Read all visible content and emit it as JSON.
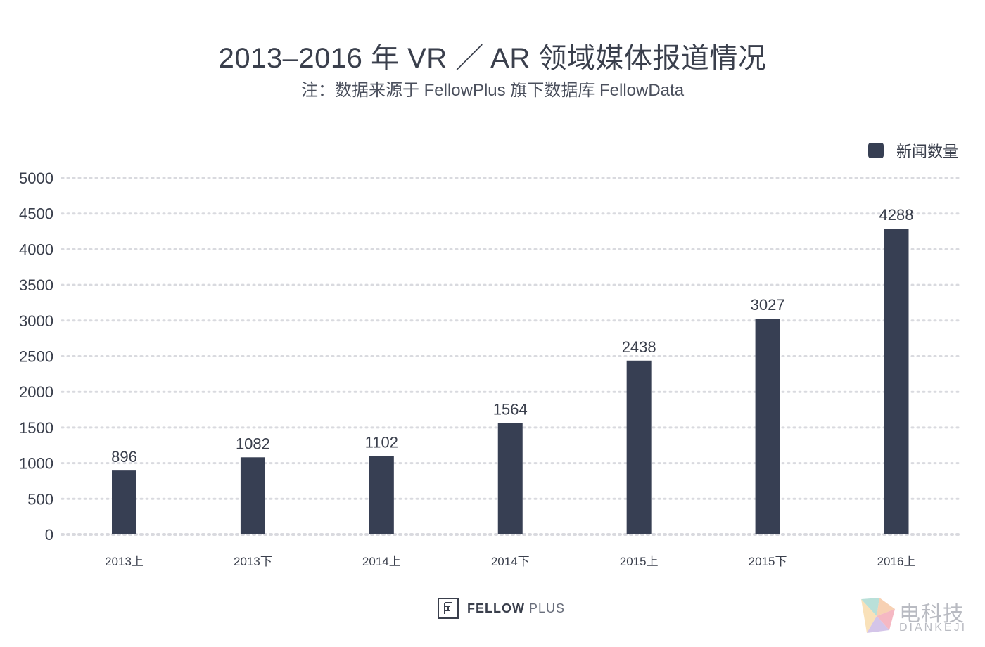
{
  "chart_data": {
    "type": "bar",
    "title": "2013–2016 年 VR ／ AR 领域媒体报道情况",
    "subtitle": "注：数据来源于 FellowPlus 旗下数据库 FellowData",
    "categories": [
      "2013上",
      "2013下",
      "2014上",
      "2014下",
      "2015上",
      "2015下",
      "2016上"
    ],
    "series": [
      {
        "name": "新闻数量",
        "values": [
          896,
          1082,
          1102,
          1564,
          2438,
          3027,
          4288
        ]
      }
    ],
    "data_labels": [
      "896",
      "1082",
      "1102",
      "1564",
      "2438",
      "3027",
      "4288"
    ],
    "ylim": [
      0,
      5000
    ],
    "yticks": [
      0,
      500,
      1000,
      1500,
      2000,
      2500,
      3000,
      3500,
      4000,
      4500,
      5000
    ],
    "ytick_labels": [
      "0",
      "500",
      "1000",
      "1500",
      "2000",
      "2500",
      "3000",
      "3500",
      "4000",
      "4500",
      "5000"
    ],
    "grid": true,
    "legend_position": "top-right",
    "xlabel": "",
    "ylabel": "",
    "bar_color": "#373f53",
    "grid_color": "#d9dadf"
  },
  "footer": {
    "logo_strong": "FELLOW",
    "logo_light": "PLUS"
  },
  "watermark": {
    "cn": "电科技",
    "en": "DIANKEJI"
  }
}
